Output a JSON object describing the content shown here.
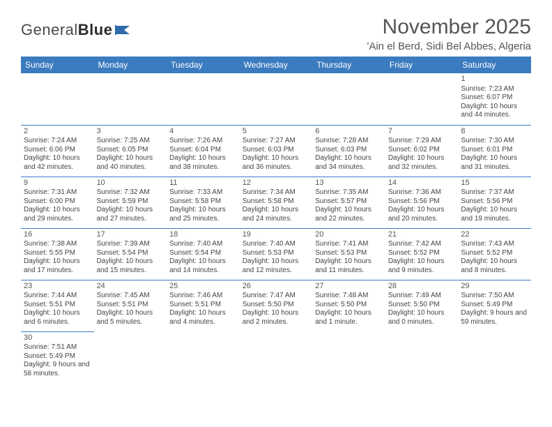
{
  "brand": {
    "part1": "General",
    "part2": "Blue"
  },
  "title": "November 2025",
  "location": "'Ain el Berd, Sidi Bel Abbes, Algeria",
  "colors": {
    "header_bg": "#3b7bbf",
    "header_text": "#ffffff",
    "border": "#3b7bbf",
    "body_text": "#444444",
    "title_text": "#555555"
  },
  "weekdays": [
    "Sunday",
    "Monday",
    "Tuesday",
    "Wednesday",
    "Thursday",
    "Friday",
    "Saturday"
  ],
  "weeks": [
    [
      null,
      null,
      null,
      null,
      null,
      null,
      {
        "d": "1",
        "sr": "7:23 AM",
        "ss": "6:07 PM",
        "dl": "10 hours and 44 minutes."
      }
    ],
    [
      {
        "d": "2",
        "sr": "7:24 AM",
        "ss": "6:06 PM",
        "dl": "10 hours and 42 minutes."
      },
      {
        "d": "3",
        "sr": "7:25 AM",
        "ss": "6:05 PM",
        "dl": "10 hours and 40 minutes."
      },
      {
        "d": "4",
        "sr": "7:26 AM",
        "ss": "6:04 PM",
        "dl": "10 hours and 38 minutes."
      },
      {
        "d": "5",
        "sr": "7:27 AM",
        "ss": "6:03 PM",
        "dl": "10 hours and 36 minutes."
      },
      {
        "d": "6",
        "sr": "7:28 AM",
        "ss": "6:03 PM",
        "dl": "10 hours and 34 minutes."
      },
      {
        "d": "7",
        "sr": "7:29 AM",
        "ss": "6:02 PM",
        "dl": "10 hours and 32 minutes."
      },
      {
        "d": "8",
        "sr": "7:30 AM",
        "ss": "6:01 PM",
        "dl": "10 hours and 31 minutes."
      }
    ],
    [
      {
        "d": "9",
        "sr": "7:31 AM",
        "ss": "6:00 PM",
        "dl": "10 hours and 29 minutes."
      },
      {
        "d": "10",
        "sr": "7:32 AM",
        "ss": "5:59 PM",
        "dl": "10 hours and 27 minutes."
      },
      {
        "d": "11",
        "sr": "7:33 AM",
        "ss": "5:58 PM",
        "dl": "10 hours and 25 minutes."
      },
      {
        "d": "12",
        "sr": "7:34 AM",
        "ss": "5:58 PM",
        "dl": "10 hours and 24 minutes."
      },
      {
        "d": "13",
        "sr": "7:35 AM",
        "ss": "5:57 PM",
        "dl": "10 hours and 22 minutes."
      },
      {
        "d": "14",
        "sr": "7:36 AM",
        "ss": "5:56 PM",
        "dl": "10 hours and 20 minutes."
      },
      {
        "d": "15",
        "sr": "7:37 AM",
        "ss": "5:56 PM",
        "dl": "10 hours and 19 minutes."
      }
    ],
    [
      {
        "d": "16",
        "sr": "7:38 AM",
        "ss": "5:55 PM",
        "dl": "10 hours and 17 minutes."
      },
      {
        "d": "17",
        "sr": "7:39 AM",
        "ss": "5:54 PM",
        "dl": "10 hours and 15 minutes."
      },
      {
        "d": "18",
        "sr": "7:40 AM",
        "ss": "5:54 PM",
        "dl": "10 hours and 14 minutes."
      },
      {
        "d": "19",
        "sr": "7:40 AM",
        "ss": "5:53 PM",
        "dl": "10 hours and 12 minutes."
      },
      {
        "d": "20",
        "sr": "7:41 AM",
        "ss": "5:53 PM",
        "dl": "10 hours and 11 minutes."
      },
      {
        "d": "21",
        "sr": "7:42 AM",
        "ss": "5:52 PM",
        "dl": "10 hours and 9 minutes."
      },
      {
        "d": "22",
        "sr": "7:43 AM",
        "ss": "5:52 PM",
        "dl": "10 hours and 8 minutes."
      }
    ],
    [
      {
        "d": "23",
        "sr": "7:44 AM",
        "ss": "5:51 PM",
        "dl": "10 hours and 6 minutes."
      },
      {
        "d": "24",
        "sr": "7:45 AM",
        "ss": "5:51 PM",
        "dl": "10 hours and 5 minutes."
      },
      {
        "d": "25",
        "sr": "7:46 AM",
        "ss": "5:51 PM",
        "dl": "10 hours and 4 minutes."
      },
      {
        "d": "26",
        "sr": "7:47 AM",
        "ss": "5:50 PM",
        "dl": "10 hours and 2 minutes."
      },
      {
        "d": "27",
        "sr": "7:48 AM",
        "ss": "5:50 PM",
        "dl": "10 hours and 1 minute."
      },
      {
        "d": "28",
        "sr": "7:49 AM",
        "ss": "5:50 PM",
        "dl": "10 hours and 0 minutes."
      },
      {
        "d": "29",
        "sr": "7:50 AM",
        "ss": "5:49 PM",
        "dl": "9 hours and 59 minutes."
      }
    ],
    [
      {
        "d": "30",
        "sr": "7:51 AM",
        "ss": "5:49 PM",
        "dl": "9 hours and 58 minutes."
      },
      null,
      null,
      null,
      null,
      null,
      null
    ]
  ],
  "labels": {
    "sunrise": "Sunrise:",
    "sunset": "Sunset:",
    "daylight": "Daylight:"
  }
}
